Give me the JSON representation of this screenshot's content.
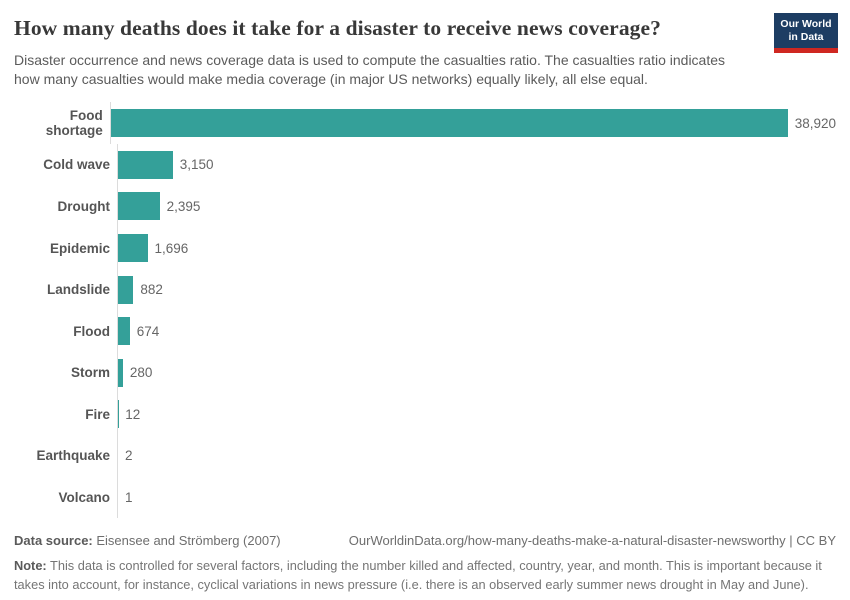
{
  "header": {
    "title": "How many deaths does it take for a disaster to receive news coverage?",
    "subtitle": "Disaster occurrence and news coverage data is used to compute the casualties ratio. The casualties ratio indicates how many casualties would make media coverage (in major US networks) equally likely, all else equal.",
    "logo": {
      "line1": "Our World",
      "line2": "in Data",
      "bg_color": "#1d3d63",
      "strip_color": "#cf2721"
    }
  },
  "chart_data": {
    "type": "bar",
    "orientation": "horizontal",
    "title": "How many deaths does it take for a disaster to receive news coverage?",
    "categories": [
      "Food shortage",
      "Cold wave",
      "Drought",
      "Epidemic",
      "Landslide",
      "Flood",
      "Storm",
      "Fire",
      "Earthquake",
      "Volcano"
    ],
    "values": [
      38920,
      3150,
      2395,
      1696,
      882,
      674,
      280,
      12,
      2,
      1
    ],
    "value_labels": [
      "38,920",
      "3,150",
      "2,395",
      "1,696",
      "882",
      "674",
      "280",
      "12",
      "2",
      "1"
    ],
    "xlabel": "",
    "ylabel": "",
    "xlim": [
      0,
      38920
    ],
    "grid": false,
    "legend": false,
    "bar_color": "#34a099",
    "axis_color": "#dcdcdc"
  },
  "footer": {
    "source_label": "Data source:",
    "source_text": " Eisensee and Strömberg (2007)",
    "url_text": "OurWorldinData.org/how-many-deaths-make-a-natural-disaster-newsworthy",
    "separator": " | ",
    "license_text": "CC BY",
    "note_label": "Note:",
    "note_text": " This data is controlled for several factors, including the number killed and affected, country, year, and month. This is important because it takes into account, for instance, cyclical variations in news pressure (i.e. there is an observed early summer news drought in May and June)."
  }
}
